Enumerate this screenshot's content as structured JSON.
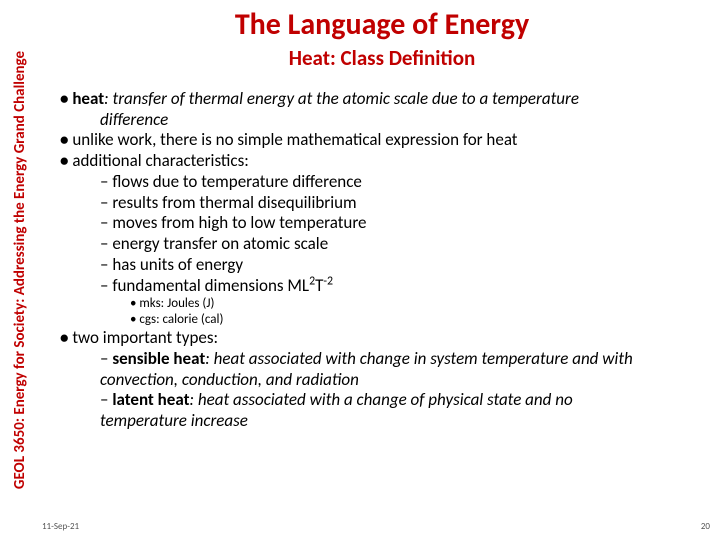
{
  "colors": {
    "accent": "#c00000",
    "text": "#000000",
    "footer": "#555555",
    "bg": "#ffffff"
  },
  "sidebar": {
    "label": "GEOL 3650: Energy for Society: Addressing the Energy Grand Challenge"
  },
  "header": {
    "title": "The Language of Energy",
    "subtitle": "Heat: Class Definition"
  },
  "bullets": {
    "heat_term": "heat",
    "heat_def": ": transfer of thermal energy at the atomic scale due to a temperature",
    "heat_def_cont": "difference",
    "b2": "unlike work, there is no simple mathematical expression for heat",
    "b3": "additional characteristics:",
    "c1": "flows due to temperature difference",
    "c2": "results from thermal disequilibrium",
    "c3": "moves from high to low temperature",
    "c4": "energy transfer on atomic scale",
    "c5": "has units of energy",
    "c6_pre": "fundamental dimensions ML",
    "c6_sup1": "2",
    "c6_mid": "T",
    "c6_sup2": "-2",
    "u1": "mks: Joules (J)",
    "u2": "cgs: calorie (cal)",
    "b4": "two important types:",
    "t1_term": "sensible heat",
    "t1_def": ": heat associated with change in system temperature and with",
    "t1_def_cont": "convection, conduction, and radiation",
    "t2_term": "latent heat",
    "t2_def": ": heat associated with a change of physical state and no",
    "t2_def_cont": "temperature increase"
  },
  "footer": {
    "date": "11-Sep-21",
    "page": "20"
  }
}
